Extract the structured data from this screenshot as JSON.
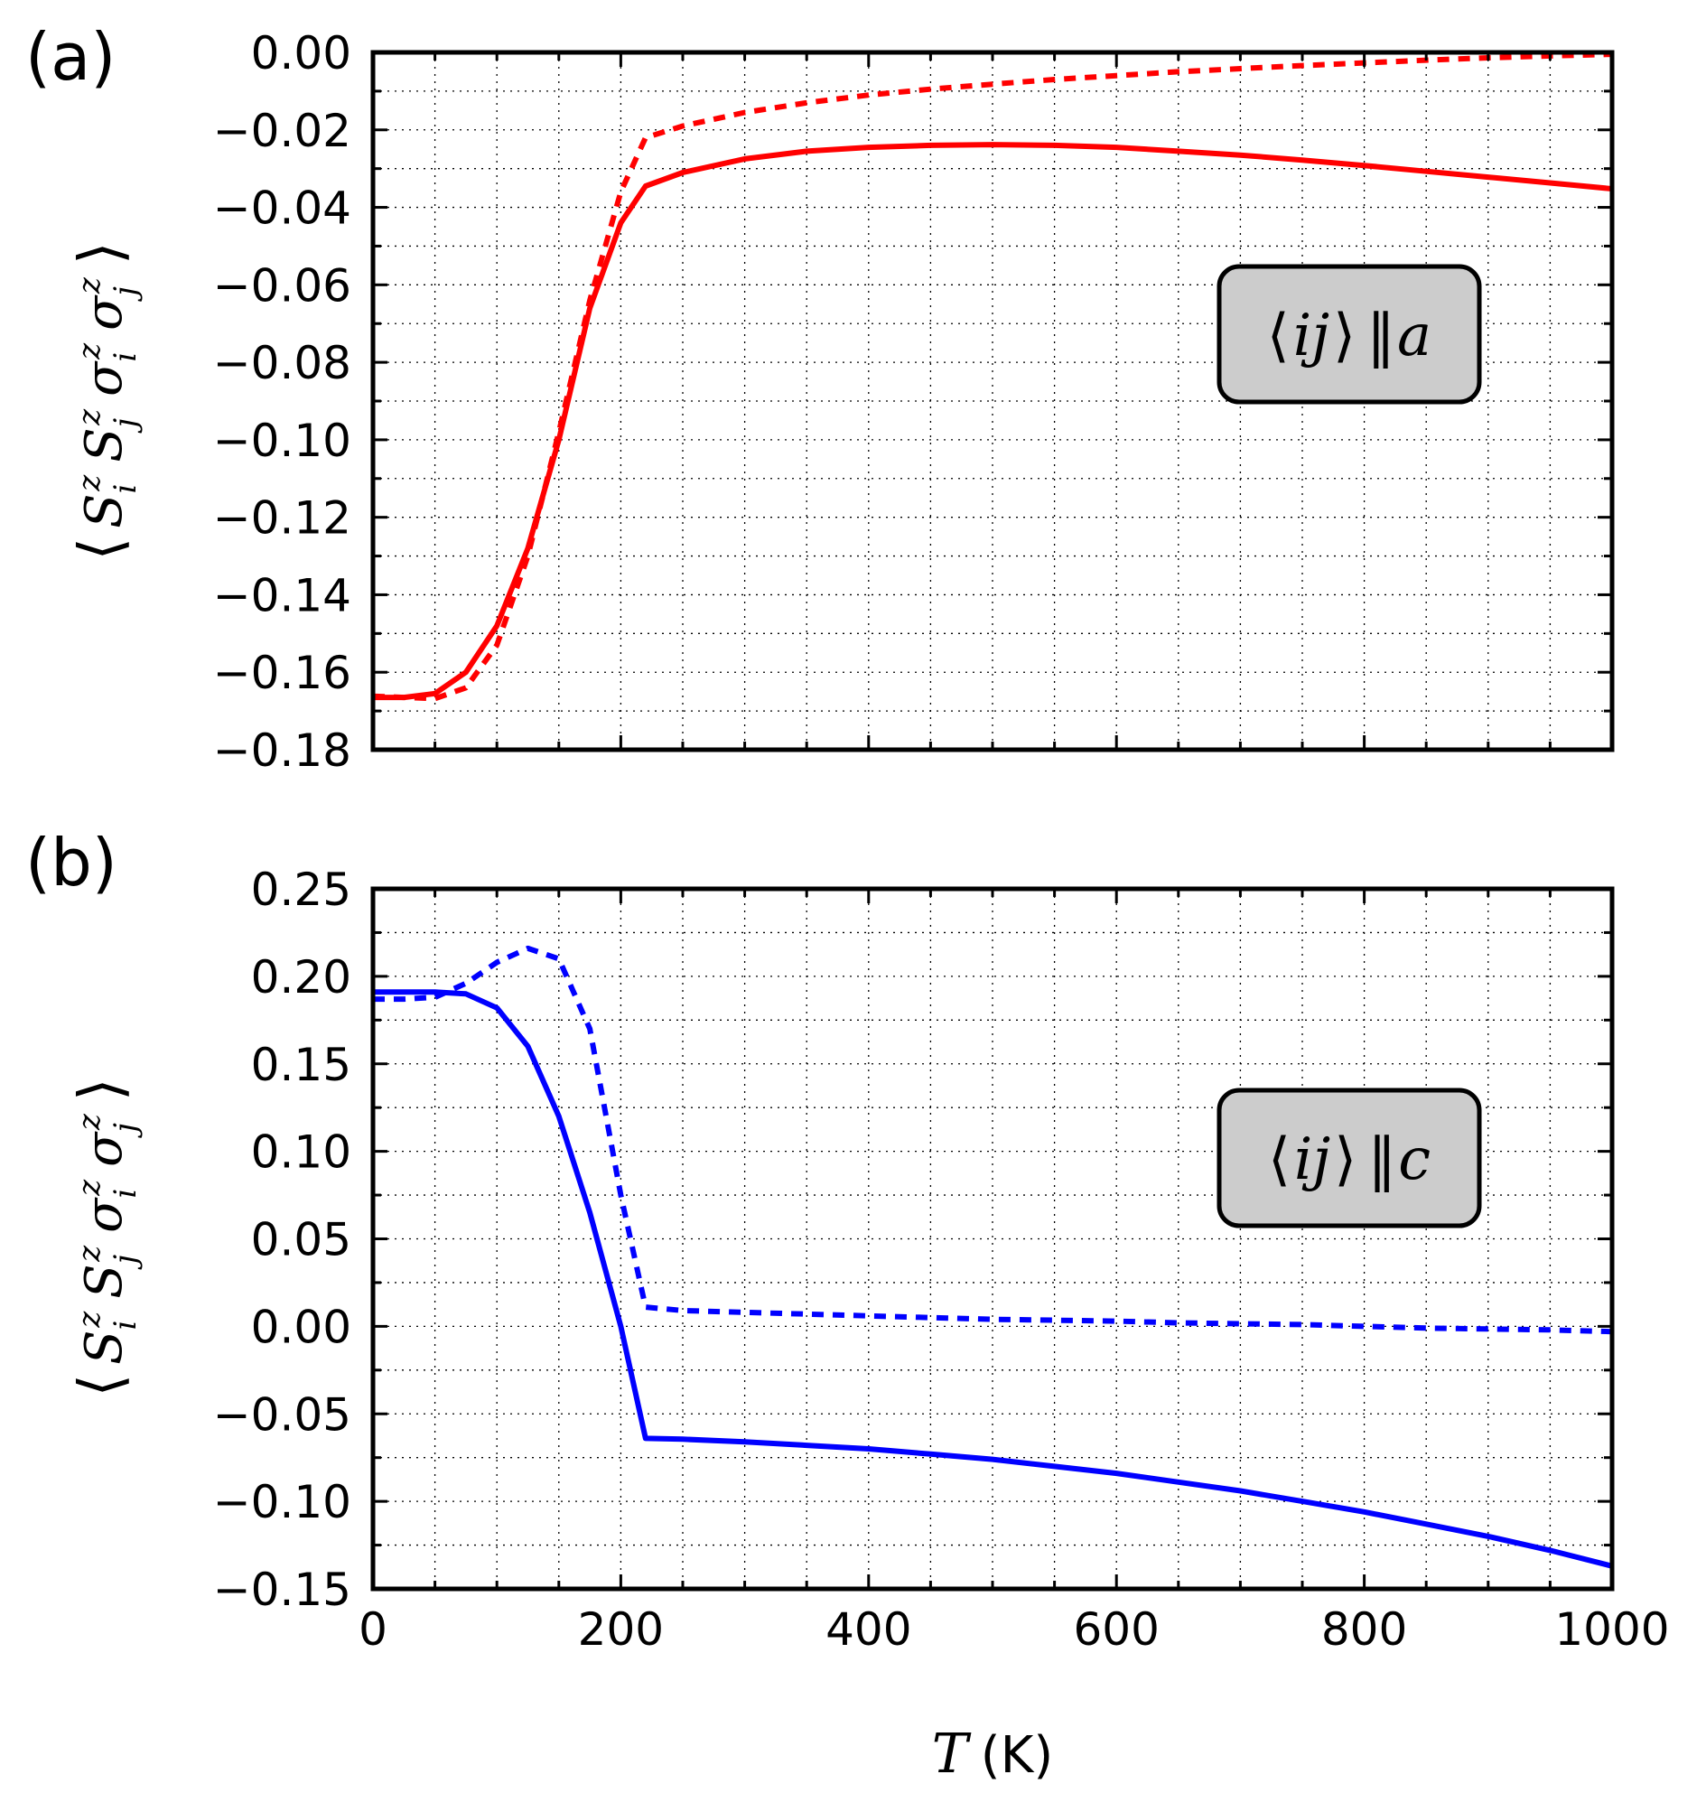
{
  "chart_data": [
    {
      "type": "line",
      "panel_label": "(a)",
      "xlabel_var": "T",
      "xlabel_unit": "(K)",
      "ylabel_math": "⟨ S_i^z S_j^z σ_i^z σ_j^z ⟩",
      "xlim": [
        0,
        1000
      ],
      "ylim": [
        -0.18,
        0.0
      ],
      "xticks": [
        0,
        200,
        400,
        600,
        800,
        1000
      ],
      "xtick_labels": [
        "0",
        "200",
        "400",
        "600",
        "800",
        "1000"
      ],
      "yticks": [
        0.0,
        -0.02,
        -0.04,
        -0.06,
        -0.08,
        -0.1,
        -0.12,
        -0.14,
        -0.16,
        -0.18
      ],
      "ytick_labels": [
        "0.00",
        "−0.02",
        "−0.04",
        "−0.06",
        "−0.08",
        "−0.10",
        "−0.12",
        "−0.14",
        "−0.16",
        "−0.18"
      ],
      "grid": true,
      "show_xtick_labels": false,
      "annotation": {
        "text": "⟨ij⟩ ‖a",
        "pre": "⟨",
        "ij": "ij",
        "post": "⟩",
        "par": "‖",
        "dir": "a",
        "position": "right-middle"
      },
      "series": [
        {
          "name": "solid",
          "color": "#ff0000",
          "style": "solid",
          "x": [
            0,
            25,
            50,
            75,
            100,
            125,
            150,
            175,
            200,
            220,
            250,
            300,
            350,
            400,
            450,
            500,
            550,
            600,
            650,
            700,
            750,
            800,
            850,
            900,
            950,
            1000
          ],
          "y": [
            -0.1665,
            -0.1665,
            -0.1655,
            -0.16,
            -0.148,
            -0.128,
            -0.1,
            -0.066,
            -0.044,
            -0.0345,
            -0.031,
            -0.0275,
            -0.0255,
            -0.0245,
            -0.024,
            -0.0238,
            -0.024,
            -0.0245,
            -0.0255,
            -0.0265,
            -0.0278,
            -0.0292,
            -0.0307,
            -0.0322,
            -0.0337,
            -0.0352
          ]
        },
        {
          "name": "dotted",
          "color": "#ff0000",
          "style": "dotted",
          "x": [
            0,
            25,
            50,
            75,
            100,
            125,
            150,
            175,
            200,
            220,
            250,
            300,
            350,
            400,
            450,
            500,
            550,
            600,
            650,
            700,
            750,
            800,
            850,
            900,
            950,
            1000
          ],
          "y": [
            -0.1662,
            -0.1665,
            -0.1668,
            -0.164,
            -0.153,
            -0.13,
            -0.098,
            -0.064,
            -0.036,
            -0.022,
            -0.019,
            -0.0155,
            -0.013,
            -0.011,
            -0.0095,
            -0.0082,
            -0.007,
            -0.006,
            -0.005,
            -0.0042,
            -0.0034,
            -0.0027,
            -0.002,
            -0.0014,
            -0.0009,
            -0.0005
          ]
        }
      ]
    },
    {
      "type": "line",
      "panel_label": "(b)",
      "xlabel_var": "T",
      "xlabel_unit": "(K)",
      "ylabel_math": "⟨ S_i^z S_j^z σ_i^z σ_j^z ⟩",
      "xlim": [
        0,
        1000
      ],
      "ylim": [
        -0.15,
        0.25
      ],
      "xticks": [
        0,
        200,
        400,
        600,
        800,
        1000
      ],
      "xtick_labels": [
        "0",
        "200",
        "400",
        "600",
        "800",
        "1000"
      ],
      "yticks": [
        0.25,
        0.2,
        0.15,
        0.1,
        0.05,
        0.0,
        -0.05,
        -0.1,
        -0.15
      ],
      "ytick_labels": [
        "0.25",
        "0.20",
        "0.15",
        "0.10",
        "0.05",
        "0.00",
        "−0.05",
        "−0.10",
        "−0.15"
      ],
      "grid": true,
      "show_xtick_labels": true,
      "annotation": {
        "text": "⟨ij⟩ ‖c",
        "pre": "⟨",
        "ij": "ij",
        "post": "⟩",
        "par": "‖",
        "dir": "c",
        "position": "right-middle"
      },
      "series": [
        {
          "name": "solid",
          "color": "#0000ff",
          "style": "solid",
          "x": [
            0,
            25,
            50,
            75,
            100,
            125,
            150,
            175,
            200,
            220,
            250,
            300,
            350,
            400,
            450,
            500,
            550,
            600,
            650,
            700,
            750,
            800,
            850,
            900,
            950,
            1000
          ],
          "y": [
            0.191,
            0.191,
            0.191,
            0.19,
            0.182,
            0.16,
            0.12,
            0.065,
            0.0,
            -0.064,
            -0.0645,
            -0.066,
            -0.068,
            -0.07,
            -0.073,
            -0.076,
            -0.08,
            -0.084,
            -0.089,
            -0.094,
            -0.1,
            -0.106,
            -0.113,
            -0.12,
            -0.128,
            -0.137
          ]
        },
        {
          "name": "dotted",
          "color": "#0000ff",
          "style": "dotted",
          "x": [
            0,
            25,
            50,
            75,
            100,
            125,
            150,
            175,
            200,
            220,
            250,
            300,
            350,
            400,
            450,
            500,
            550,
            600,
            650,
            700,
            750,
            800,
            850,
            900,
            950,
            1000
          ],
          "y": [
            0.187,
            0.187,
            0.188,
            0.196,
            0.208,
            0.216,
            0.21,
            0.17,
            0.075,
            0.011,
            0.009,
            0.008,
            0.007,
            0.006,
            0.005,
            0.004,
            0.0035,
            0.003,
            0.002,
            0.0015,
            0.001,
            0.0,
            -0.001,
            -0.0015,
            -0.002,
            -0.003
          ]
        }
      ]
    }
  ]
}
